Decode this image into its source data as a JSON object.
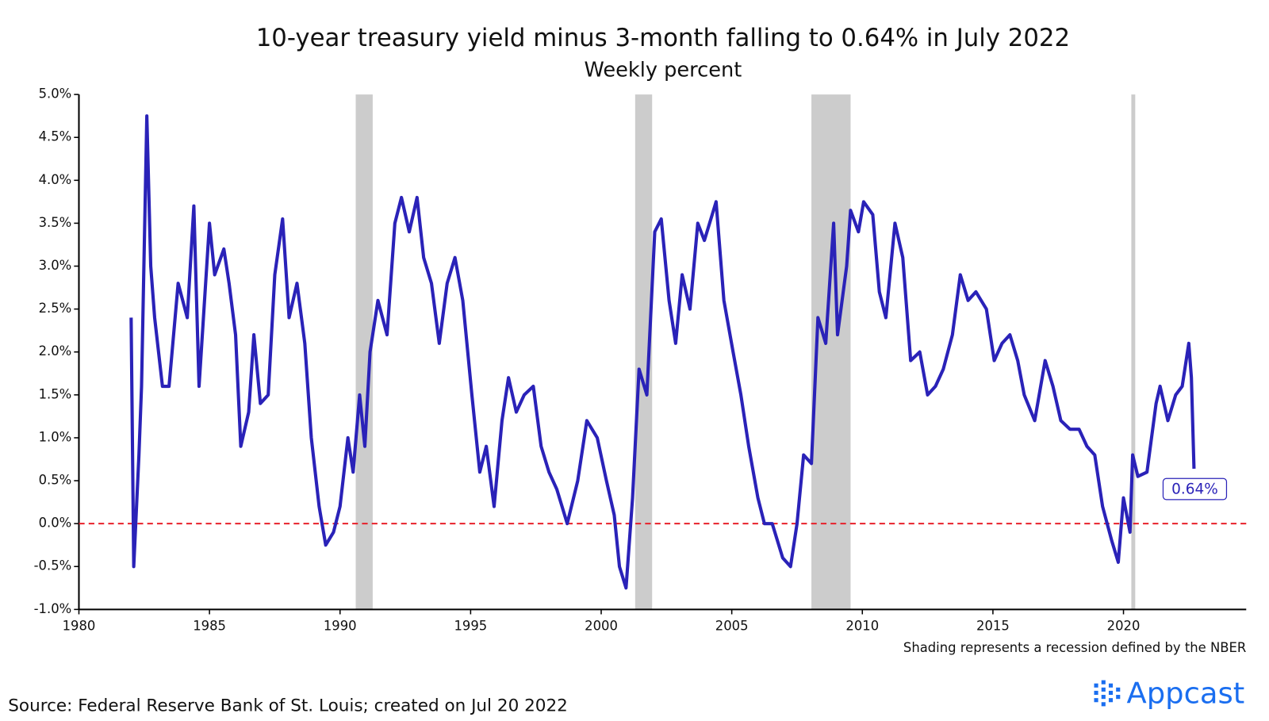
{
  "chart_data": {
    "type": "line",
    "title": "10-year treasury yield minus 3-month falling to 0.64% in July 2022",
    "subtitle": "Weekly percent",
    "note": "Shading represents a recession defined by the NBER",
    "source": "Source: Federal Reserve Bank of St. Louis; created on Jul 20 2022",
    "logo": "Appcast",
    "annotation": "0.64%",
    "reference_line": 0,
    "reference_color": "#e8202a",
    "recessions": [
      [
        1990.6,
        1991.25
      ],
      [
        2001.3,
        2001.95
      ],
      [
        2008.05,
        2009.55
      ],
      [
        2020.3,
        2020.45
      ]
    ],
    "recession_color": "#cccccc",
    "xlim": [
      1980,
      2024.7
    ],
    "xticks": [
      1980,
      1985,
      1990,
      1995,
      2000,
      2005,
      2010,
      2015,
      2020
    ],
    "ylim": [
      -1,
      5
    ],
    "yticks": [
      {
        "value": -1,
        "label": "-1.0%"
      },
      {
        "value": -0.5,
        "label": "-0.5%"
      },
      {
        "value": 0,
        "label": "0.0%"
      },
      {
        "value": 0.5,
        "label": "0.5%"
      },
      {
        "value": 1,
        "label": "1.0%"
      },
      {
        "value": 1.5,
        "label": "1.5%"
      },
      {
        "value": 2,
        "label": "2.0%"
      },
      {
        "value": 2.5,
        "label": "2.5%"
      },
      {
        "value": 3,
        "label": "3.0%"
      },
      {
        "value": 3.5,
        "label": "3.5%"
      },
      {
        "value": 4,
        "label": "4.0%"
      },
      {
        "value": 4.5,
        "label": "4.5%"
      },
      {
        "value": 5,
        "label": "5.0%"
      }
    ],
    "x": [
      1982.0,
      1982.1,
      1982.3,
      1982.4,
      1982.6,
      1982.75,
      1982.9,
      1983.2,
      1983.45,
      1983.8,
      1984.15,
      1984.4,
      1984.6,
      1985.0,
      1985.2,
      1985.55,
      1985.75,
      1986.0,
      1986.2,
      1986.5,
      1986.7,
      1986.95,
      1987.25,
      1987.5,
      1987.8,
      1988.05,
      1988.35,
      1988.65,
      1988.9,
      1989.2,
      1989.45,
      1989.75,
      1990.0,
      1990.3,
      1990.5,
      1990.75,
      1990.95,
      1991.15,
      1991.45,
      1991.8,
      1992.1,
      1992.35,
      1992.65,
      1992.95,
      1993.2,
      1993.5,
      1993.8,
      1994.1,
      1994.4,
      1994.7,
      1995.05,
      1995.35,
      1995.6,
      1995.9,
      1996.2,
      1996.45,
      1996.75,
      1997.05,
      1997.4,
      1997.7,
      1998.0,
      1998.3,
      1998.7,
      1999.1,
      1999.45,
      1999.85,
      2000.2,
      2000.5,
      2000.7,
      2000.95,
      2001.2,
      2001.45,
      2001.75,
      2002.05,
      2002.3,
      2002.6,
      2002.85,
      2003.1,
      2003.4,
      2003.7,
      2003.95,
      2004.4,
      2004.7,
      2005.05,
      2005.35,
      2005.65,
      2006.0,
      2006.25,
      2006.55,
      2006.95,
      2007.25,
      2007.5,
      2007.75,
      2008.05,
      2008.3,
      2008.6,
      2008.9,
      2009.05,
      2009.4,
      2009.55,
      2009.85,
      2010.05,
      2010.4,
      2010.65,
      2010.9,
      2011.25,
      2011.55,
      2011.85,
      2012.2,
      2012.5,
      2012.8,
      2013.1,
      2013.45,
      2013.75,
      2014.05,
      2014.35,
      2014.75,
      2015.05,
      2015.35,
      2015.65,
      2015.95,
      2016.2,
      2016.6,
      2017.0,
      2017.3,
      2017.6,
      2017.95,
      2018.3,
      2018.6,
      2018.9,
      2019.2,
      2019.55,
      2019.8,
      2020.0,
      2020.25,
      2020.35,
      2020.55,
      2020.9,
      2021.25,
      2021.4,
      2021.7,
      2022.0,
      2022.25,
      2022.5,
      2022.6,
      2022.7
    ],
    "series": [
      {
        "name": "10-year minus 3-month",
        "color": "#2a22b8",
        "values": [
          2.4,
          -0.5,
          0.8,
          1.6,
          4.75,
          3.0,
          2.4,
          1.6,
          1.6,
          2.8,
          2.4,
          3.7,
          1.6,
          3.5,
          2.9,
          3.2,
          2.8,
          2.2,
          0.9,
          1.3,
          2.2,
          1.4,
          1.5,
          2.9,
          3.55,
          2.4,
          2.8,
          2.1,
          1.0,
          0.2,
          -0.25,
          -0.1,
          0.2,
          1.0,
          0.6,
          1.5,
          0.9,
          2.0,
          2.6,
          2.2,
          3.5,
          3.8,
          3.4,
          3.8,
          3.1,
          2.8,
          2.1,
          2.8,
          3.1,
          2.6,
          1.5,
          0.6,
          0.9,
          0.2,
          1.2,
          1.7,
          1.3,
          1.5,
          1.6,
          0.9,
          0.6,
          0.4,
          0.0,
          0.5,
          1.2,
          1.0,
          0.5,
          0.1,
          -0.5,
          -0.75,
          0.3,
          1.8,
          1.5,
          3.4,
          3.55,
          2.6,
          2.1,
          2.9,
          2.5,
          3.5,
          3.3,
          3.75,
          2.6,
          2.0,
          1.5,
          0.9,
          0.3,
          0.0,
          0.0,
          -0.4,
          -0.5,
          0.0,
          0.8,
          0.7,
          2.4,
          2.1,
          3.5,
          2.2,
          3.0,
          3.65,
          3.4,
          3.75,
          3.6,
          2.7,
          2.4,
          3.5,
          3.1,
          1.9,
          2.0,
          1.5,
          1.6,
          1.8,
          2.2,
          2.9,
          2.6,
          2.7,
          2.5,
          1.9,
          2.1,
          2.2,
          1.9,
          1.5,
          1.2,
          1.9,
          1.6,
          1.2,
          1.1,
          1.1,
          0.9,
          0.8,
          0.2,
          -0.2,
          -0.45,
          0.3,
          -0.1,
          0.8,
          0.55,
          0.6,
          1.4,
          1.6,
          1.2,
          1.5,
          1.6,
          2.1,
          1.7,
          0.64
        ]
      }
    ]
  }
}
